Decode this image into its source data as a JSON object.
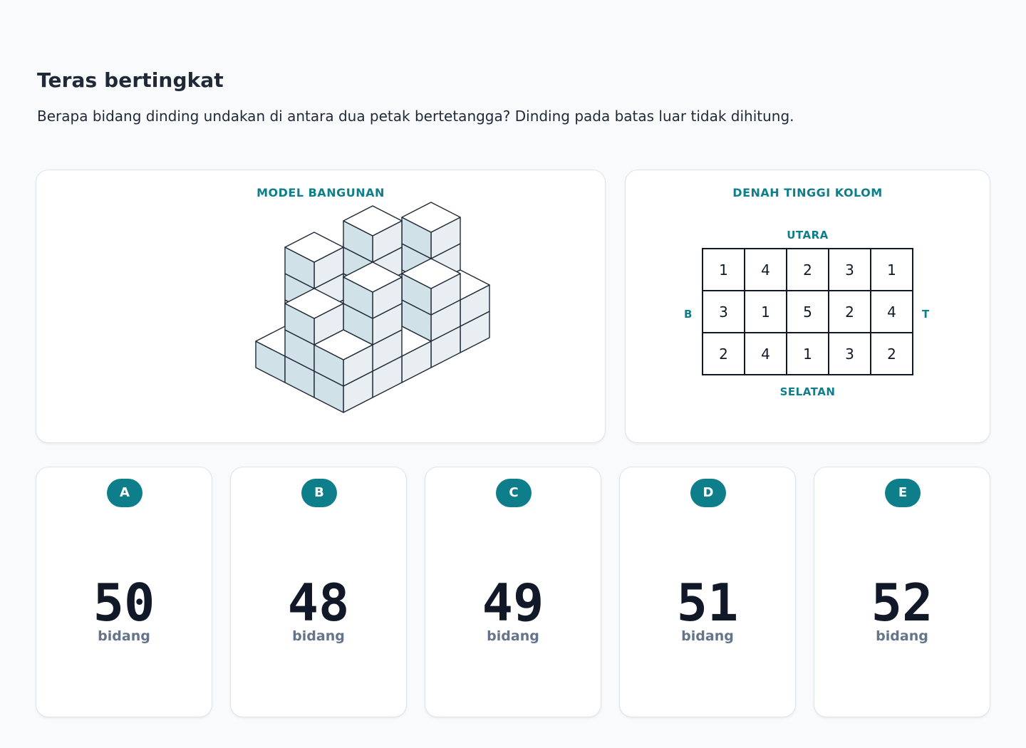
{
  "question": {
    "title": "Teras bertingkat",
    "prompt": "Berapa bidang dinding undakan di antara dua petak bertetangga? Dinding pada batas luar tidak dihitung."
  },
  "model_panel": {
    "title": "MODEL BANGUNAN"
  },
  "plan_panel": {
    "title": "DENAH TINGGI KOLOM",
    "north": "UTARA",
    "south": "SELATAN",
    "west": "B",
    "east": "T",
    "heights": [
      [
        1,
        4,
        2,
        3,
        1
      ],
      [
        3,
        1,
        5,
        2,
        4
      ],
      [
        2,
        4,
        1,
        3,
        2
      ]
    ]
  },
  "options": [
    {
      "letter": "A",
      "value": "50",
      "unit": "bidang"
    },
    {
      "letter": "B",
      "value": "48",
      "unit": "bidang"
    },
    {
      "letter": "C",
      "value": "49",
      "unit": "bidang"
    },
    {
      "letter": "D",
      "value": "51",
      "unit": "bidang"
    },
    {
      "letter": "E",
      "value": "52",
      "unit": "bidang"
    }
  ],
  "colors": {
    "accent": "#0e7f8a",
    "cube_top": "#ffffff",
    "cube_left": "#e8eef2",
    "cube_right": "#d0e1e7"
  }
}
